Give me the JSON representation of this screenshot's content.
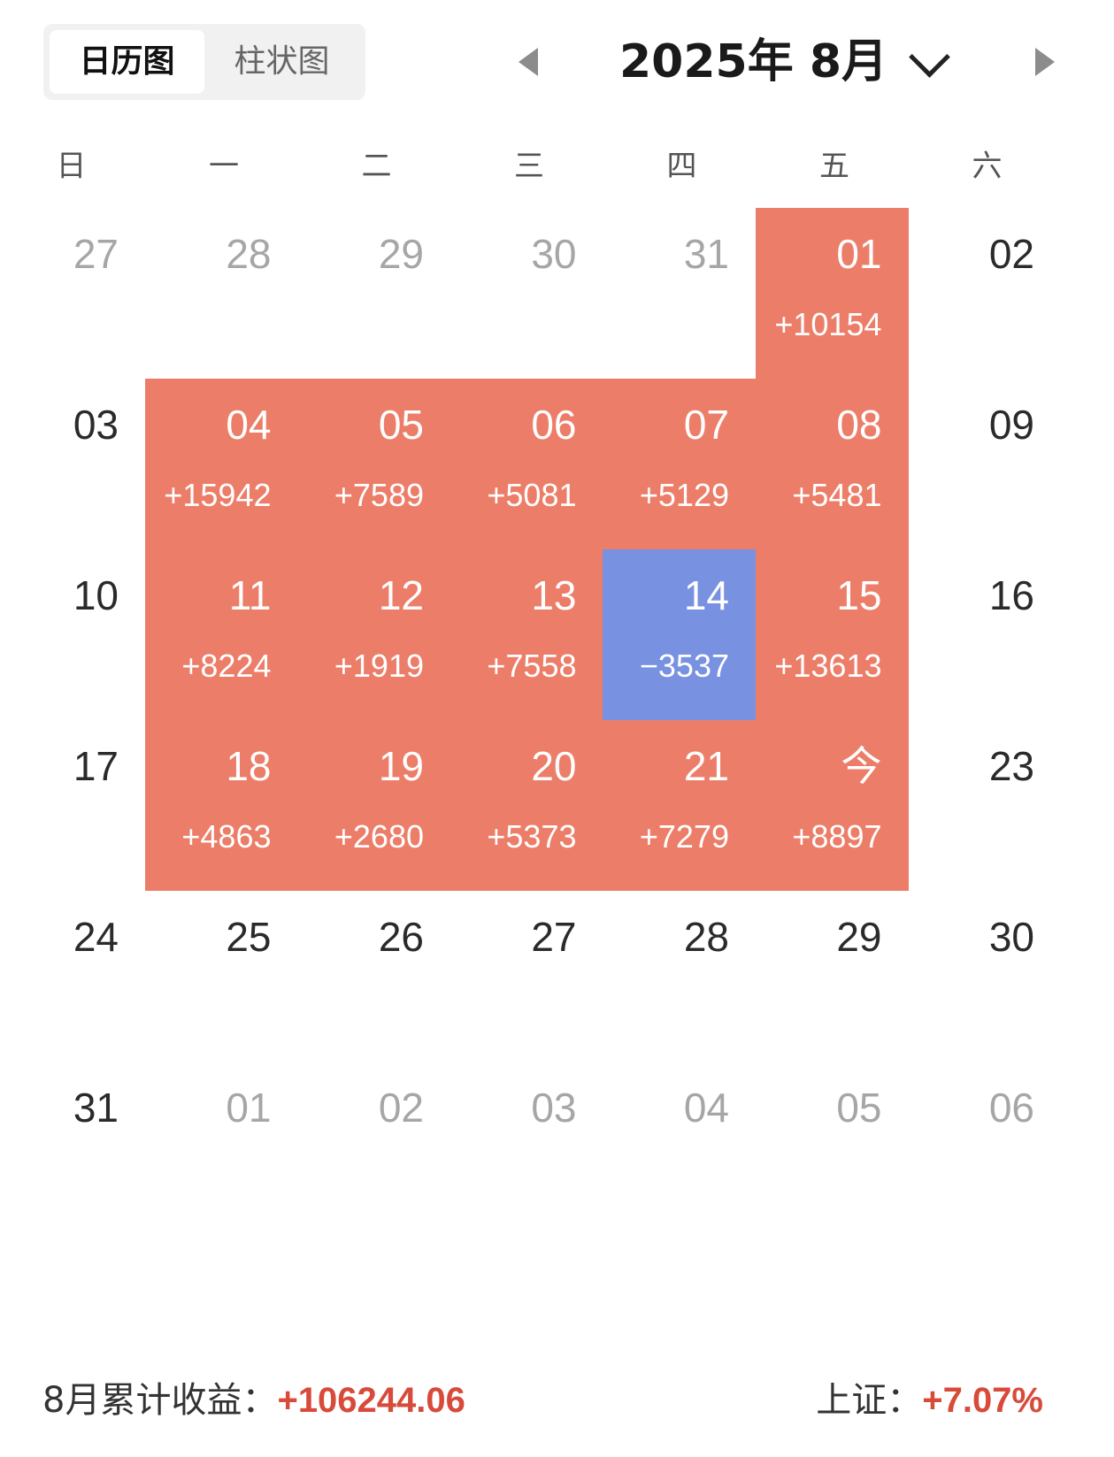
{
  "toggle": {
    "calendar_label": "日历图",
    "bar_label": "柱状图",
    "active": "calendar"
  },
  "header": {
    "month_title": "2025年 8月"
  },
  "weekdays": [
    "日",
    "一",
    "二",
    "三",
    "四",
    "五",
    "六"
  ],
  "colors": {
    "gain": "#ec7e69",
    "loss": "#7891e0",
    "summary_value": "#d84a3a"
  },
  "weeks": [
    [
      {
        "day": "27",
        "other": true
      },
      {
        "day": "28",
        "other": true
      },
      {
        "day": "29",
        "other": true
      },
      {
        "day": "30",
        "other": true
      },
      {
        "day": "31",
        "other": true
      },
      {
        "day": "01",
        "pnl": "+10154",
        "type": "gain"
      },
      {
        "day": "02"
      }
    ],
    [
      {
        "day": "03"
      },
      {
        "day": "04",
        "pnl": "+15942",
        "type": "gain"
      },
      {
        "day": "05",
        "pnl": "+7589",
        "type": "gain"
      },
      {
        "day": "06",
        "pnl": "+5081",
        "type": "gain"
      },
      {
        "day": "07",
        "pnl": "+5129",
        "type": "gain"
      },
      {
        "day": "08",
        "pnl": "+5481",
        "type": "gain"
      },
      {
        "day": "09"
      }
    ],
    [
      {
        "day": "10"
      },
      {
        "day": "11",
        "pnl": "+8224",
        "type": "gain"
      },
      {
        "day": "12",
        "pnl": "+1919",
        "type": "gain"
      },
      {
        "day": "13",
        "pnl": "+7558",
        "type": "gain"
      },
      {
        "day": "14",
        "pnl": "−3537",
        "type": "loss"
      },
      {
        "day": "15",
        "pnl": "+13613",
        "type": "gain"
      },
      {
        "day": "16"
      }
    ],
    [
      {
        "day": "17"
      },
      {
        "day": "18",
        "pnl": "+4863",
        "type": "gain"
      },
      {
        "day": "19",
        "pnl": "+2680",
        "type": "gain"
      },
      {
        "day": "20",
        "pnl": "+5373",
        "type": "gain"
      },
      {
        "day": "21",
        "pnl": "+7279",
        "type": "gain"
      },
      {
        "day": "今",
        "pnl": "+8897",
        "type": "gain"
      },
      {
        "day": "23"
      }
    ],
    [
      {
        "day": "24"
      },
      {
        "day": "25"
      },
      {
        "day": "26"
      },
      {
        "day": "27"
      },
      {
        "day": "28"
      },
      {
        "day": "29"
      },
      {
        "day": "30"
      }
    ],
    [
      {
        "day": "31"
      },
      {
        "day": "01",
        "other": true
      },
      {
        "day": "02",
        "other": true
      },
      {
        "day": "03",
        "other": true
      },
      {
        "day": "04",
        "other": true
      },
      {
        "day": "05",
        "other": true
      },
      {
        "day": "06",
        "other": true
      }
    ]
  ],
  "summary": {
    "cumulative_label": "8月累计收益：",
    "cumulative_value": "+106244.06",
    "index_label": "上证：",
    "index_value": "+7.07%"
  }
}
